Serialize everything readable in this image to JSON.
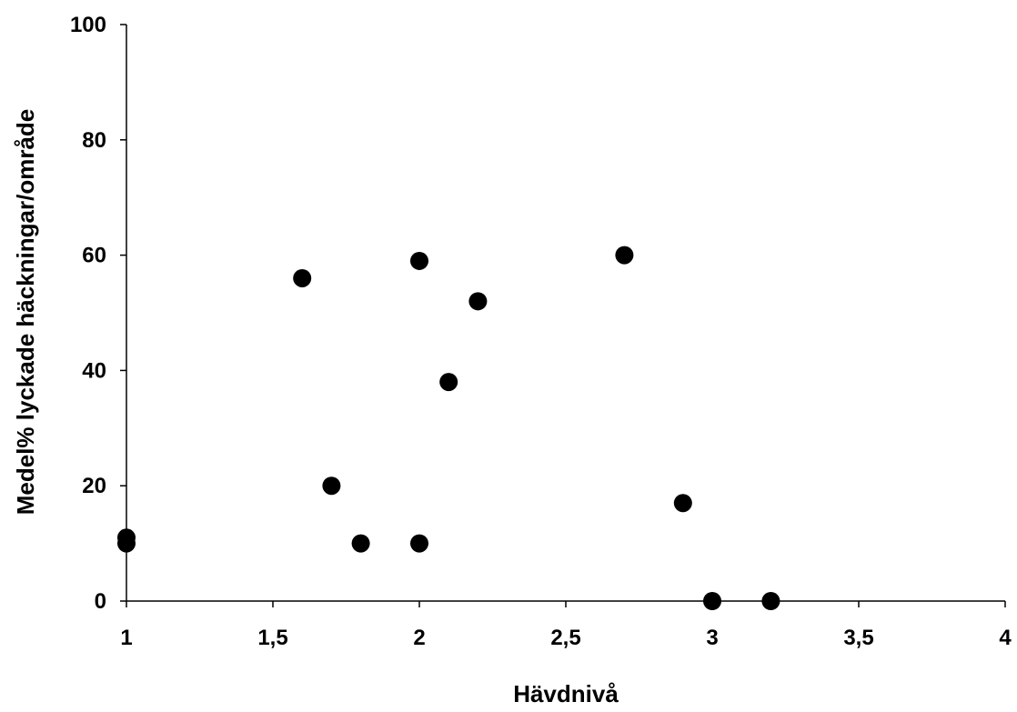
{
  "chart_data": {
    "type": "scatter",
    "title": "",
    "xlabel": "Hävdnivå",
    "ylabel": "Medel% lyckade häckningar/område",
    "xlim": [
      1,
      4
    ],
    "ylim": [
      0,
      100
    ],
    "x_ticks": [
      1,
      1.5,
      2,
      2.5,
      3,
      3.5,
      4
    ],
    "x_tick_labels": [
      "1",
      "1,5",
      "2",
      "2,5",
      "3",
      "3,5",
      "4"
    ],
    "y_ticks": [
      0,
      20,
      40,
      60,
      80,
      100
    ],
    "y_tick_labels": [
      "0",
      "20",
      "40",
      "60",
      "80",
      "100"
    ],
    "grid": false,
    "legend": "none",
    "marker_color": "#000000",
    "points": [
      {
        "x": 1.0,
        "y": 11
      },
      {
        "x": 1.0,
        "y": 10
      },
      {
        "x": 1.6,
        "y": 56
      },
      {
        "x": 1.7,
        "y": 20
      },
      {
        "x": 1.8,
        "y": 10
      },
      {
        "x": 2.0,
        "y": 59
      },
      {
        "x": 2.0,
        "y": 10
      },
      {
        "x": 2.1,
        "y": 38
      },
      {
        "x": 2.2,
        "y": 52
      },
      {
        "x": 2.7,
        "y": 60
      },
      {
        "x": 2.9,
        "y": 17
      },
      {
        "x": 3.0,
        "y": 0
      },
      {
        "x": 3.2,
        "y": 0
      }
    ]
  }
}
